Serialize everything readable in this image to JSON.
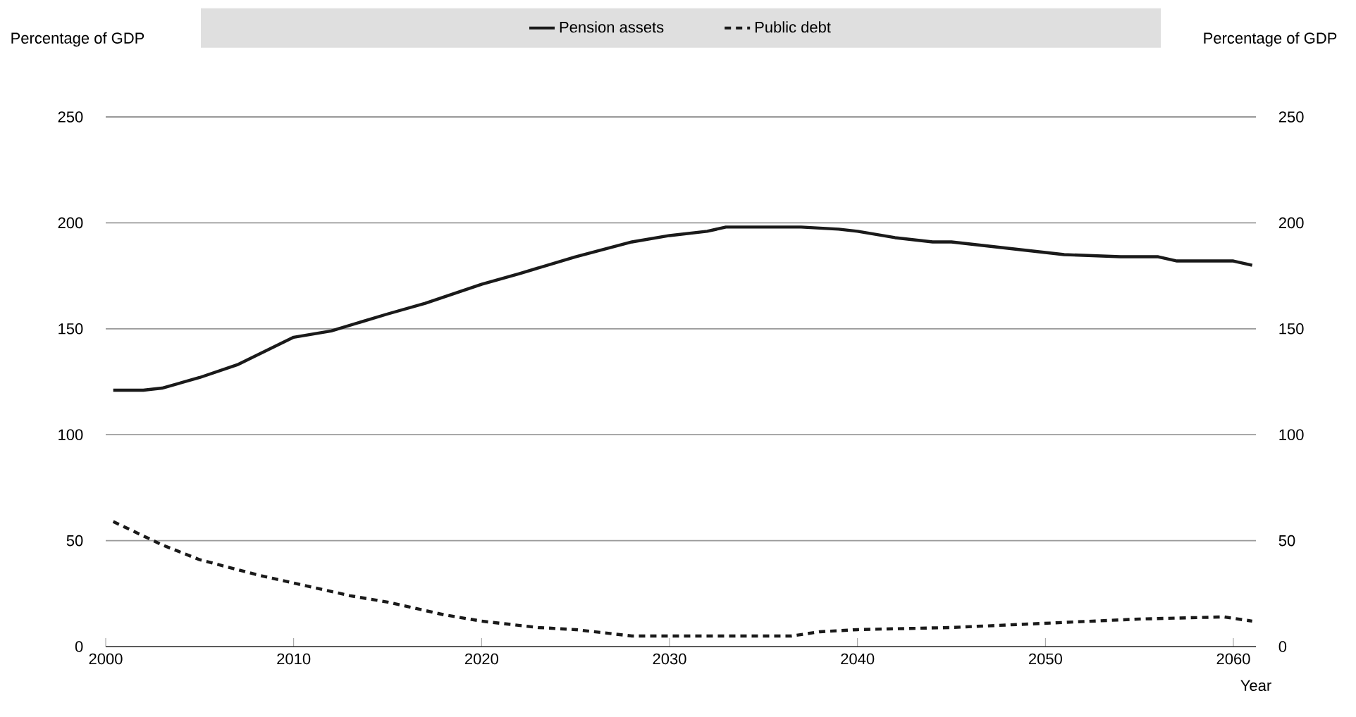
{
  "chart_data": {
    "type": "line",
    "xlabel": "Year",
    "ylabel": "Percentage of GDP",
    "y2label": "Percentage of GDP",
    "xlim": [
      2000,
      2061.2
    ],
    "xticks": [
      2000,
      2010,
      2020,
      2030,
      2040,
      2050,
      2060
    ],
    "ylim": [
      0,
      250
    ],
    "yticks": [
      0,
      50,
      100,
      150,
      200,
      250
    ],
    "y2lim": [
      0,
      250
    ],
    "y2ticks": [
      0,
      50,
      100,
      150,
      200,
      250
    ],
    "grid": "y",
    "legend": "top",
    "marker": "none",
    "series": [
      {
        "name": "Pension assets",
        "color": "#1a1a1a",
        "line_style": "solid",
        "x": [
          2000.4,
          2002,
          2003,
          2005,
          2007,
          2010,
          2012,
          2015,
          2017,
          2020,
          2022,
          2025,
          2028,
          2030,
          2032,
          2033,
          2037,
          2039,
          2040,
          2042,
          2044,
          2045,
          2047,
          2048,
          2050,
          2051,
          2054,
          2055,
          2056,
          2057,
          2060,
          2061
        ],
        "values": [
          121,
          121,
          122,
          127,
          133,
          146,
          149,
          157,
          162,
          171,
          176,
          184,
          191,
          194,
          196,
          198,
          198,
          197,
          196,
          193,
          191,
          191,
          189,
          188,
          186,
          185,
          184,
          184,
          184,
          182,
          182,
          180
        ]
      },
      {
        "name": "Public debt",
        "color": "#1a1a1a",
        "line_style": "dashed",
        "x": [
          2000.4,
          2003,
          2005,
          2008,
          2010,
          2013,
          2015,
          2018,
          2020,
          2023,
          2025,
          2028,
          2030,
          2033,
          2036.5,
          2038,
          2040,
          2045,
          2050,
          2055,
          2059.5,
          2061
        ],
        "values": [
          59,
          48,
          41,
          34,
          30,
          24,
          21,
          15,
          12,
          9,
          8,
          5,
          5,
          5,
          5,
          7,
          8,
          9,
          11,
          13,
          14,
          12
        ]
      }
    ]
  }
}
